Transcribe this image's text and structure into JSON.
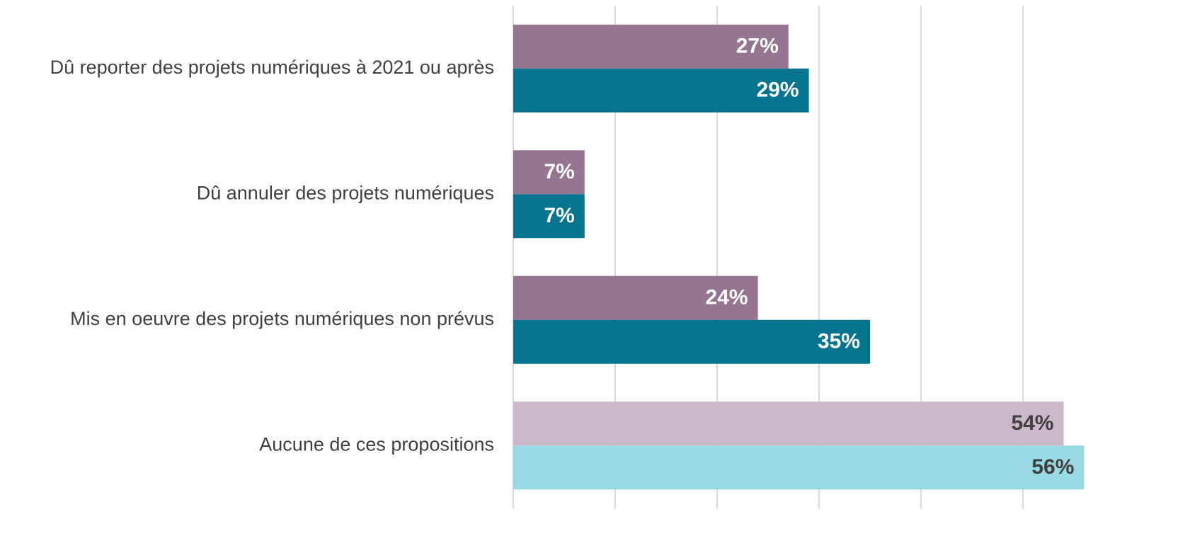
{
  "chart_data": {
    "type": "hbar",
    "categories": [
      "Dû reporter des projets numériques à 2021 ou après",
      "Dû annuler des projets numériques",
      "Mis en oeuvre des projets numériques non prévus",
      "Aucune de ces propositions"
    ],
    "series": [
      {
        "colors": [
          "#957590",
          "#957590",
          "#957590",
          "#cbb9c9"
        ],
        "label_colors": [
          "#ffffff",
          "#ffffff",
          "#ffffff",
          "#404040"
        ],
        "values": [
          27,
          7,
          24,
          54
        ],
        "value_labels": [
          "27%",
          "7%",
          "24%",
          "54%"
        ]
      },
      {
        "colors": [
          "#05748f",
          "#05748f",
          "#05748f",
          "#99d9e2"
        ],
        "label_colors": [
          "#ffffff",
          "#ffffff",
          "#ffffff",
          "#404040"
        ],
        "values": [
          29,
          7,
          35,
          56
        ],
        "value_labels": [
          "29%",
          "7%",
          "35%",
          "56%"
        ]
      }
    ],
    "xlim": [
      0,
      60
    ],
    "xticks": [
      0,
      10,
      20,
      30,
      40,
      50
    ],
    "grid": true
  }
}
